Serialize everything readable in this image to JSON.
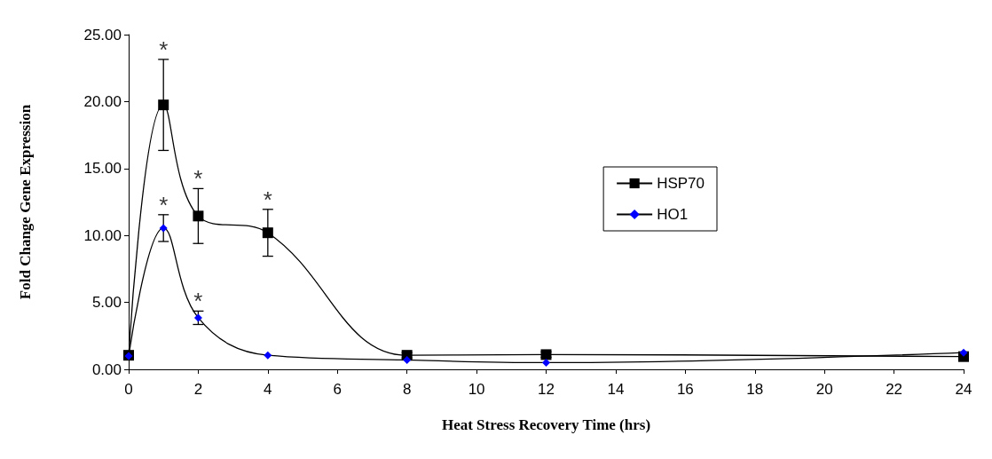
{
  "chart_data": {
    "type": "line",
    "xlabel": "Heat Stress Recovery Time (hrs)",
    "ylabel": "Fold Change Gene Expression",
    "x": [
      0,
      1,
      2,
      4,
      8,
      12,
      24
    ],
    "series": [
      {
        "name": "HSP70",
        "color": "#000000",
        "marker": "square",
        "values": [
          1.05,
          19.75,
          11.45,
          10.2,
          1.05,
          1.1,
          0.95
        ],
        "errors": [
          0.2,
          3.4,
          2.05,
          1.75,
          0.2,
          0.2,
          0.2
        ]
      },
      {
        "name": "HO1",
        "color": "#0000ff",
        "marker": "diamond",
        "values": [
          1.0,
          10.55,
          3.85,
          1.05,
          0.7,
          0.5,
          1.25
        ],
        "errors": [
          null,
          1.0,
          0.5,
          null,
          null,
          null,
          null
        ]
      }
    ],
    "xlim": [
      0,
      24
    ],
    "xticks": [
      0,
      2,
      4,
      6,
      8,
      10,
      12,
      14,
      16,
      18,
      20,
      22,
      24
    ],
    "ylim": [
      0,
      25
    ],
    "yticks": [
      {
        "value": 0,
        "label": "0.00"
      },
      {
        "value": 5,
        "label": "5.00"
      },
      {
        "value": 10,
        "label": "10.00"
      },
      {
        "value": 15,
        "label": "15.00"
      },
      {
        "value": 20,
        "label": "20.00"
      },
      {
        "value": 25,
        "label": "25.00"
      }
    ],
    "annotations": [
      {
        "text": "*",
        "x": 1,
        "y": 23.1
      },
      {
        "text": "*",
        "x": 2,
        "y": 13.5
      },
      {
        "text": "*",
        "x": 4,
        "y": 11.9
      },
      {
        "text": "*",
        "x": 1,
        "y": 11.5
      },
      {
        "text": "*",
        "x": 2,
        "y": 4.35
      }
    ],
    "legend": "right",
    "grid": false,
    "line_style": "solid"
  }
}
